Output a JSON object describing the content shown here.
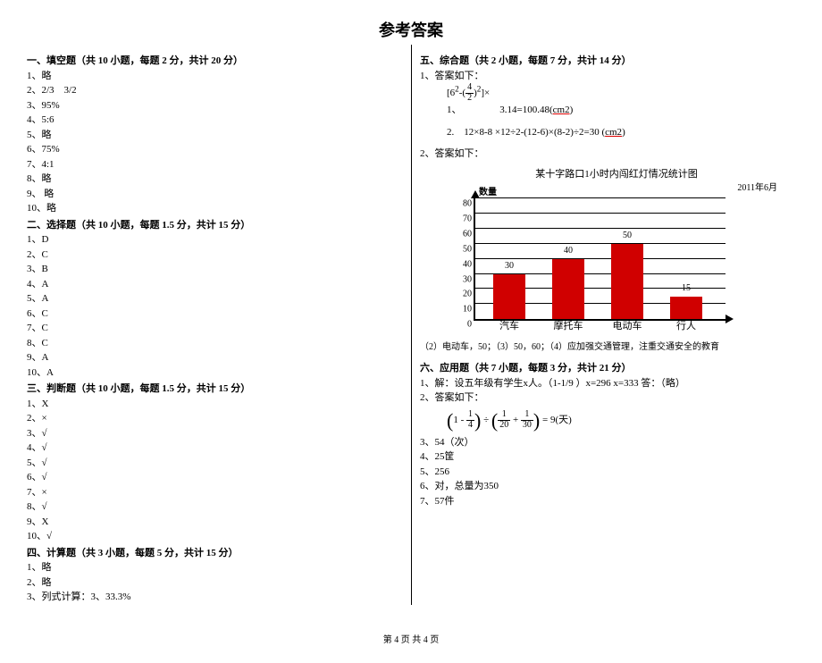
{
  "title": "参考答案",
  "footer": "第 4 页 共 4 页",
  "sections": {
    "s1": {
      "head": "一、填空题（共 10 小题，每题 2 分，共计 20 分）",
      "items": [
        "1、略",
        "2、2/3　3/2",
        "3、95%",
        "4、5:6",
        "5、略",
        "6、75%",
        "7、4:1",
        "8、略",
        "9、 略",
        "10、略"
      ]
    },
    "s2": {
      "head": "二、选择题（共 10 小题，每题 1.5 分，共计 15 分）",
      "items": [
        "1、D",
        "2、C",
        "3、B",
        "4、A",
        "5、A",
        "6、C",
        "7、C",
        "8、C",
        "9、A",
        "10、A"
      ]
    },
    "s3": {
      "head": "三、判断题（共 10 小题，每题 1.5 分，共计 15 分）",
      "items": [
        "1、X",
        "2、×",
        "3、√",
        "4、√",
        "5、√",
        "6、√",
        "7、×",
        "8、√",
        "9、X",
        "10、√"
      ]
    },
    "s4": {
      "head": "四、计算题（共 3 小题，每题 5 分，共计 15 分）",
      "items": [
        "1、略",
        "2、略",
        "3、列式计算：3、33.3%"
      ]
    },
    "s5": {
      "head": "五、综合题（共 2 小题，每题 7 分，共计 14 分）",
      "q1_intro": "1、答案如下：",
      "eq1_top": "[6",
      "eq1_sup1": "2",
      "eq1_mid": "-(",
      "eq1_frac_num": "4",
      "eq1_frac_den": "2",
      "eq1_close": ")",
      "eq1_sup2": "2",
      "eq1_end": "]×",
      "eq1_index": "1、",
      "eq1_result": "3.14=100.48(",
      "eq1_unit": "cm2",
      "eq1_closep": ")",
      "eq2_pre": "2.　12×8-8 ×12÷2-(12-6)×(8-2)÷2=30 (",
      "eq2_unit": "cm2",
      "eq2_close": ")",
      "q2_intro": "2、答案如下：",
      "chart": {
        "title": "某十字路口1小时内闯红灯情况统计图",
        "date": "2011年6月",
        "ylabel": "数量",
        "yticks": [
          0,
          10,
          20,
          30,
          40,
          50,
          60,
          70,
          80
        ],
        "ymax": 80,
        "bar_color": "#d00000",
        "categories": [
          "汽车",
          "摩托车",
          "电动车",
          "行人"
        ],
        "values": [
          30,
          40,
          50,
          15
        ]
      },
      "note": "（2）电动车，50；（3）50，60；（4）应加强交通管理，注重交通安全的教育"
    },
    "s6": {
      "head": "六、应用题（共 7 小题，每题 3 分，共计 21 分）",
      "i1": "1、解：设五年级有学生x人。（1-1/9 ）x=296 x=333 答：（略）",
      "i2": "2、答案如下：",
      "formula_eq": "= 9(天)",
      "i3": "3、54（次）",
      "i4": "4、25筐",
      "i5": "5、256",
      "i6": "6、对，总量为350",
      "i7": "7、57件"
    }
  }
}
